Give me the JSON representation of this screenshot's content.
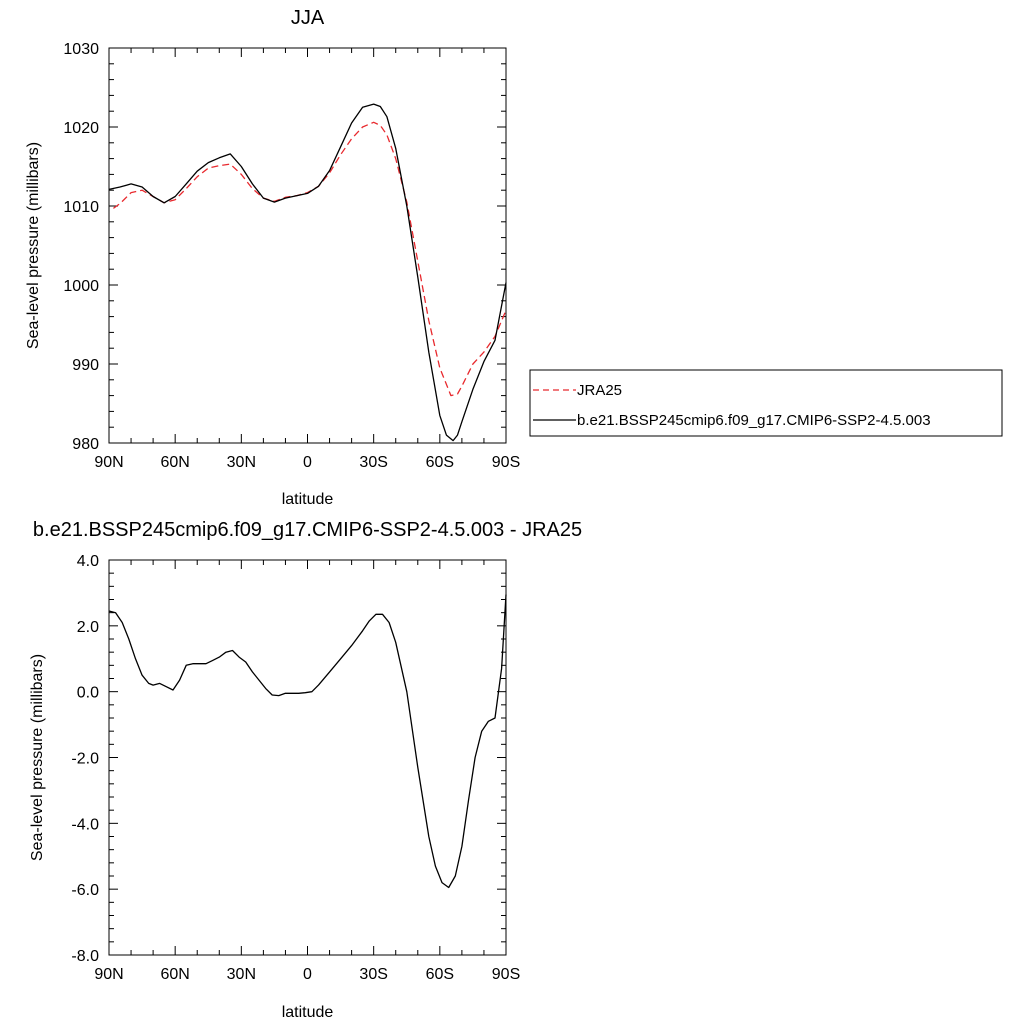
{
  "chart_data": [
    {
      "type": "line",
      "title": "JJA",
      "xlabel": "latitude",
      "ylabel": "Sea-level pressure (millibars)",
      "xlim": [
        90,
        -90
      ],
      "ylim": [
        980,
        1030
      ],
      "xticks": [
        90,
        60,
        30,
        0,
        -30,
        -60,
        -90
      ],
      "xtick_labels": [
        "90N",
        "60N",
        "30N",
        "0",
        "30S",
        "60S",
        "90S"
      ],
      "yticks": [
        980,
        990,
        1000,
        1010,
        1020,
        1030
      ],
      "ytick_labels": [
        "980",
        "990",
        "1000",
        "1010",
        "1020",
        "1030"
      ],
      "legend_position": "right",
      "series": [
        {
          "name": "JRA25",
          "color": "#e8292e",
          "dash": "dashed",
          "x": [
            88,
            85,
            80,
            75,
            70,
            65,
            60,
            55,
            50,
            45,
            40,
            35,
            30,
            25,
            20,
            15,
            10,
            5,
            0,
            -5,
            -10,
            -15,
            -20,
            -25,
            -30,
            -33,
            -36,
            -40,
            -45,
            -50,
            -55,
            -60,
            -65,
            -68,
            -70,
            -75,
            -80,
            -85,
            -90
          ],
          "y": [
            1009.7,
            1010.3,
            1011.7,
            1012.0,
            1011.2,
            1010.4,
            1010.8,
            1012.2,
            1013.7,
            1014.8,
            1015.1,
            1015.3,
            1014.0,
            1012.2,
            1011.0,
            1010.6,
            1011.1,
            1011.3,
            1011.7,
            1012.5,
            1014.2,
            1016.5,
            1018.5,
            1020.0,
            1020.6,
            1020.2,
            1019.0,
            1016.0,
            1010.5,
            1003.0,
            995.5,
            989.5,
            986.0,
            986.2,
            987.2,
            990.0,
            991.5,
            993.5,
            996.8
          ]
        },
        {
          "name": "b.e21.BSSP245cmip6.f09_g17.CMIP6-SSP2-4.5.003",
          "color": "#000000",
          "dash": "solid",
          "x": [
            90,
            85,
            80,
            75,
            70,
            65,
            60,
            55,
            50,
            45,
            40,
            35,
            30,
            25,
            20,
            15,
            10,
            5,
            0,
            -5,
            -10,
            -15,
            -20,
            -25,
            -30,
            -33,
            -36,
            -40,
            -45,
            -50,
            -55,
            -60,
            -63,
            -66,
            -68,
            -70,
            -75,
            -80,
            -85,
            -90
          ],
          "y": [
            1012.1,
            1012.4,
            1012.8,
            1012.4,
            1011.2,
            1010.4,
            1011.2,
            1012.8,
            1014.4,
            1015.5,
            1016.1,
            1016.6,
            1015.0,
            1012.8,
            1011.0,
            1010.5,
            1011.0,
            1011.3,
            1011.6,
            1012.5,
            1014.5,
            1017.5,
            1020.5,
            1022.5,
            1022.9,
            1022.6,
            1021.3,
            1017.3,
            1010.0,
            1001.0,
            991.5,
            983.5,
            981.0,
            980.3,
            981.0,
            982.7,
            986.8,
            990.3,
            993.0,
            1000.3
          ]
        }
      ]
    },
    {
      "type": "line",
      "title": "b.e21.BSSP245cmip6.f09_g17.CMIP6-SSP2-4.5.003 - JRA25",
      "xlabel": "latitude",
      "ylabel": "Sea-level pressure (millibars)",
      "xlim": [
        90,
        -90
      ],
      "ylim": [
        -8.0,
        4.0
      ],
      "xticks": [
        90,
        60,
        30,
        0,
        -30,
        -60,
        -90
      ],
      "xtick_labels": [
        "90N",
        "60N",
        "30N",
        "0",
        "30S",
        "60S",
        "90S"
      ],
      "yticks": [
        -8.0,
        -6.0,
        -4.0,
        -2.0,
        0.0,
        2.0,
        4.0
      ],
      "ytick_labels": [
        "-8.0",
        "-6.0",
        "-4.0",
        "-2.0",
        "0.0",
        "2.0",
        "4.0"
      ],
      "series": [
        {
          "color": "#000000",
          "dash": "solid",
          "x": [
            90,
            87,
            84,
            81,
            78,
            75,
            72,
            70,
            67,
            64,
            61,
            58,
            55,
            52,
            49,
            46,
            43,
            40,
            37,
            34,
            31,
            28,
            25,
            22,
            19,
            16,
            13,
            10,
            7,
            4,
            1,
            -2,
            -5,
            -10,
            -15,
            -20,
            -25,
            -28,
            -31,
            -34,
            -37,
            -40,
            -45,
            -50,
            -55,
            -58,
            -61,
            -64,
            -67,
            -70,
            -73,
            -76,
            -79,
            -82,
            -85,
            -88,
            -90
          ],
          "y": [
            2.45,
            2.4,
            2.1,
            1.6,
            1.0,
            0.5,
            0.25,
            0.2,
            0.25,
            0.15,
            0.05,
            0.35,
            0.8,
            0.85,
            0.85,
            0.85,
            0.95,
            1.05,
            1.2,
            1.25,
            1.05,
            0.9,
            0.6,
            0.35,
            0.1,
            -0.1,
            -0.12,
            -0.05,
            -0.05,
            -0.05,
            -0.03,
            0.0,
            0.2,
            0.6,
            1.0,
            1.4,
            1.85,
            2.15,
            2.35,
            2.35,
            2.1,
            1.5,
            0.0,
            -2.3,
            -4.4,
            -5.3,
            -5.8,
            -5.95,
            -5.6,
            -4.7,
            -3.3,
            -2.0,
            -1.2,
            -0.9,
            -0.8,
            0.7,
            2.95
          ]
        }
      ]
    }
  ]
}
